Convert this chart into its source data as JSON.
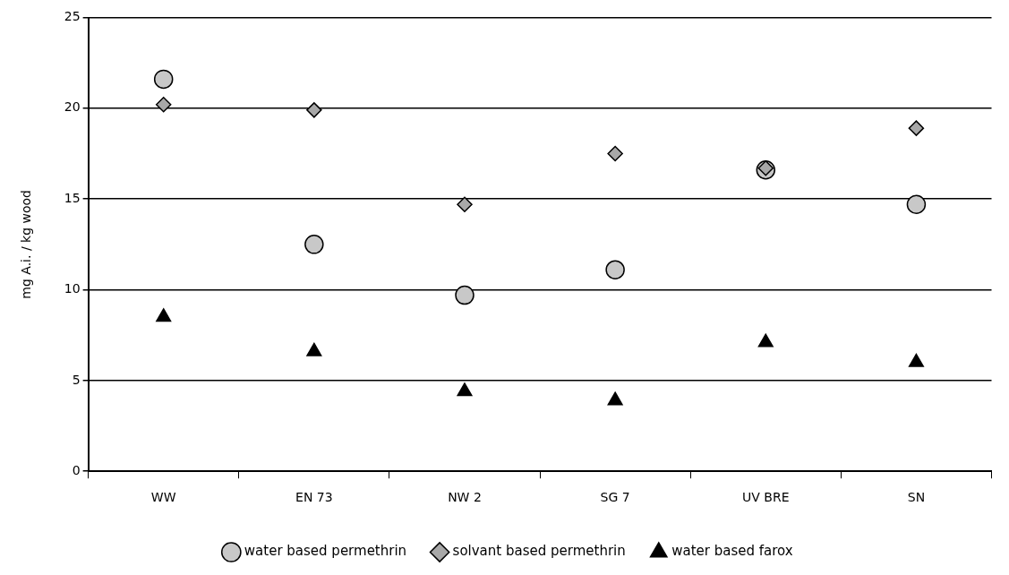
{
  "chart_data": {
    "type": "scatter",
    "ylabel": "mg A.i. / kg wood",
    "categories": [
      "WW",
      "EN 73",
      "NW 2",
      "SG 7",
      "UV BRE",
      "SN"
    ],
    "series": [
      {
        "name": "water based permethrin",
        "color": "#c8c8c8",
        "marker": "circle",
        "values": [
          21.6,
          12.5,
          9.7,
          11.1,
          16.6,
          14.7
        ]
      },
      {
        "name": "solvant based permethrin",
        "color": "#a8a8a8",
        "marker": "diamond",
        "values": [
          20.2,
          19.9,
          14.7,
          17.5,
          16.7,
          18.9
        ]
      },
      {
        "name": "water based farox",
        "color": "#000000",
        "marker": "triangle",
        "values": [
          8.5,
          6.6,
          4.4,
          3.9,
          7.1,
          6.0
        ]
      }
    ],
    "ylim": [
      0,
      25
    ],
    "yticks": [
      0,
      5,
      10,
      15,
      20,
      25
    ],
    "grid": "y",
    "legend": "bottom"
  }
}
